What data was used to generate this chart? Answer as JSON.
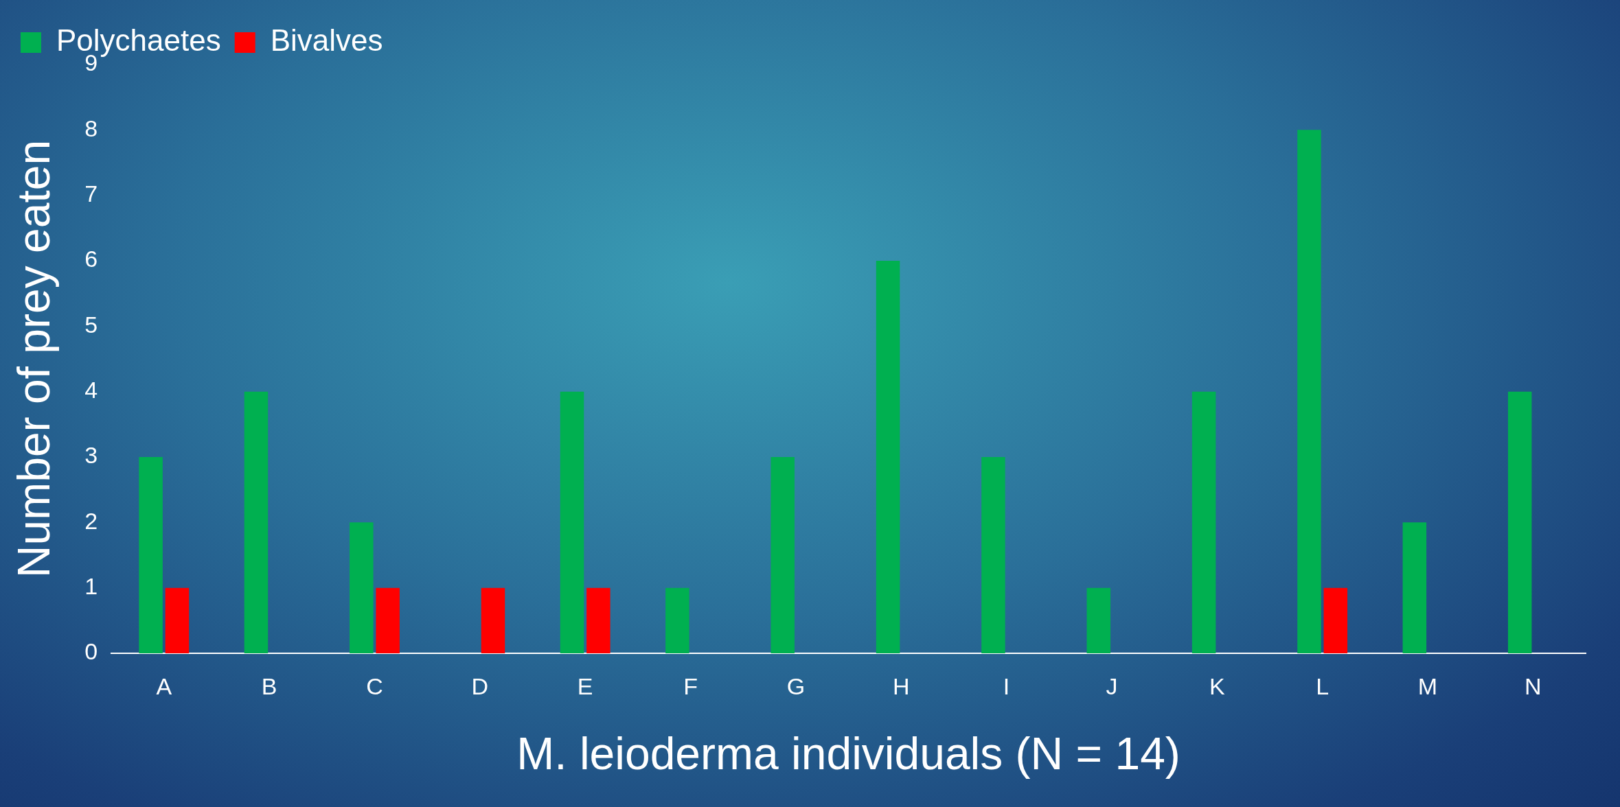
{
  "chart_data": {
    "type": "bar",
    "xlabel": "M. leioderma individuals (N = 14)",
    "ylabel": "Number of prey eaten",
    "categories": [
      "A",
      "B",
      "C",
      "D",
      "E",
      "F",
      "G",
      "H",
      "I",
      "J",
      "K",
      "L",
      "M",
      "N"
    ],
    "series": [
      {
        "name": "Polychaetes",
        "color": "#00b050",
        "values": [
          3,
          4,
          2,
          0,
          4,
          1,
          3,
          6,
          3,
          1,
          4,
          8,
          2,
          4
        ]
      },
      {
        "name": "Bivalves",
        "color": "#ff0000",
        "values": [
          1,
          0,
          1,
          1,
          1,
          0,
          0,
          0,
          0,
          0,
          0,
          1,
          0,
          0
        ]
      }
    ],
    "ylim": [
      0,
      9
    ],
    "yticks": [
      0,
      1,
      2,
      3,
      4,
      5,
      6,
      7,
      8,
      9
    ],
    "grid": false,
    "legend": "top left"
  }
}
